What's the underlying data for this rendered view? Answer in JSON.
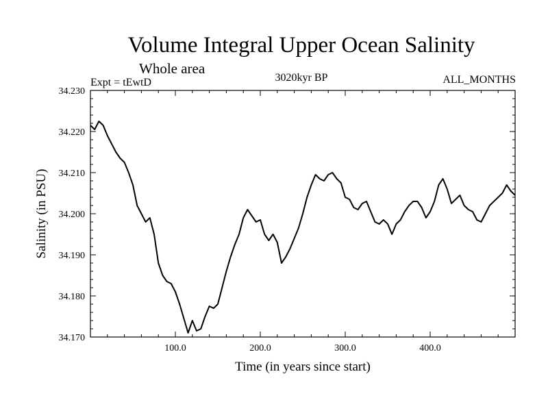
{
  "chart_data": {
    "type": "line",
    "title": "Volume Integral Upper Ocean Salinity",
    "subtitle": "Whole area",
    "expt_label": "Expt = tEwtD",
    "period_label": "3020kyr BP",
    "months_label": "ALL_MONTHS",
    "xlabel": "Time (in years since start)",
    "ylabel": "Salinity (in PSU)",
    "xlim": [
      0,
      500
    ],
    "ylim": [
      34.17,
      34.23
    ],
    "x_ticks": [
      100,
      200,
      300,
      400
    ],
    "x_tick_labels": [
      "100.0",
      "200.0",
      "300.0",
      "400.0"
    ],
    "y_ticks": [
      34.17,
      34.18,
      34.19,
      34.2,
      34.21,
      34.22,
      34.23
    ],
    "y_tick_labels": [
      "34.170",
      "34.180",
      "34.190",
      "34.200",
      "34.210",
      "34.220",
      "34.230"
    ],
    "series": [
      {
        "name": "Salinity",
        "color": "#000000",
        "x": [
          0,
          5,
          10,
          15,
          20,
          25,
          30,
          35,
          40,
          45,
          50,
          55,
          60,
          65,
          70,
          75,
          80,
          85,
          90,
          95,
          100,
          105,
          110,
          115,
          120,
          125,
          130,
          135,
          140,
          145,
          150,
          155,
          160,
          165,
          170,
          175,
          180,
          185,
          190,
          195,
          200,
          205,
          210,
          215,
          220,
          225,
          230,
          235,
          240,
          245,
          250,
          255,
          260,
          265,
          270,
          275,
          280,
          285,
          290,
          295,
          300,
          305,
          310,
          315,
          320,
          325,
          330,
          335,
          340,
          345,
          350,
          355,
          360,
          365,
          370,
          375,
          380,
          385,
          390,
          395,
          400,
          405,
          410,
          415,
          420,
          425,
          430,
          435,
          440,
          445,
          450,
          455,
          460,
          465,
          470,
          475,
          480,
          485,
          490,
          495,
          500
        ],
        "values": [
          34.2215,
          34.2205,
          34.2225,
          34.2215,
          34.219,
          34.217,
          34.215,
          34.2135,
          34.2125,
          34.21,
          34.207,
          34.202,
          34.2,
          34.198,
          34.199,
          34.195,
          34.188,
          34.185,
          34.1835,
          34.183,
          34.181,
          34.178,
          34.1745,
          34.171,
          34.174,
          34.1715,
          34.172,
          34.175,
          34.1775,
          34.177,
          34.178,
          34.182,
          34.186,
          34.1895,
          34.1925,
          34.195,
          34.199,
          34.201,
          34.1995,
          34.198,
          34.1985,
          34.195,
          34.1935,
          34.195,
          34.193,
          34.188,
          34.1895,
          34.1915,
          34.194,
          34.1965,
          34.2,
          34.204,
          34.207,
          34.2095,
          34.2085,
          34.208,
          34.2095,
          34.21,
          34.2085,
          34.2075,
          34.204,
          34.2035,
          34.2015,
          34.201,
          34.2025,
          34.203,
          34.2005,
          34.198,
          34.1975,
          34.1985,
          34.1975,
          34.195,
          34.1975,
          34.1985,
          34.2005,
          34.202,
          34.203,
          34.203,
          34.2015,
          34.199,
          34.2005,
          34.203,
          34.207,
          34.2085,
          34.206,
          34.2025,
          34.2035,
          34.2045,
          34.202,
          34.201,
          34.2005,
          34.1985,
          34.198,
          34.2,
          34.202,
          34.203,
          34.204,
          34.205,
          34.207,
          34.2055,
          34.2045
        ]
      }
    ]
  }
}
